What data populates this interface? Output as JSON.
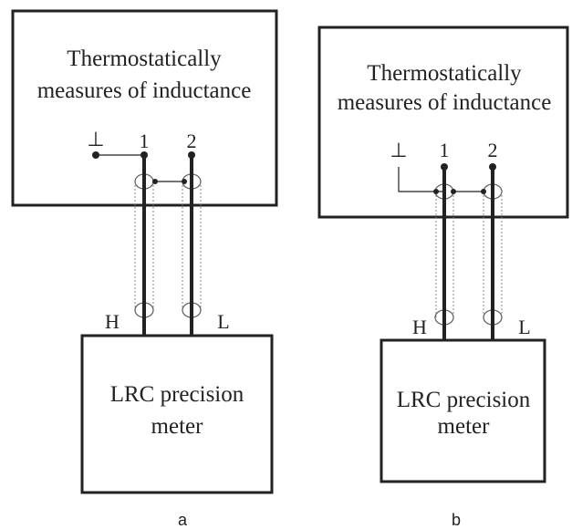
{
  "panels": [
    {
      "top_box": {
        "lines": [
          "Thermostatically",
          "measures of inductance"
        ]
      },
      "ground": "⊥",
      "pins": [
        "1",
        "2"
      ],
      "leads": [
        "H",
        "L"
      ],
      "bottom_box": {
        "lines": [
          "LRC precision",
          "meter"
        ]
      },
      "caption": "a"
    },
    {
      "top_box": {
        "lines": [
          "Thermostatically",
          "measures of inductance"
        ]
      },
      "ground": "⊥",
      "pins": [
        "1",
        "2"
      ],
      "leads": [
        "H",
        "L"
      ],
      "bottom_box": {
        "lines": [
          "LRC precision",
          "meter"
        ]
      },
      "caption": "b"
    }
  ]
}
